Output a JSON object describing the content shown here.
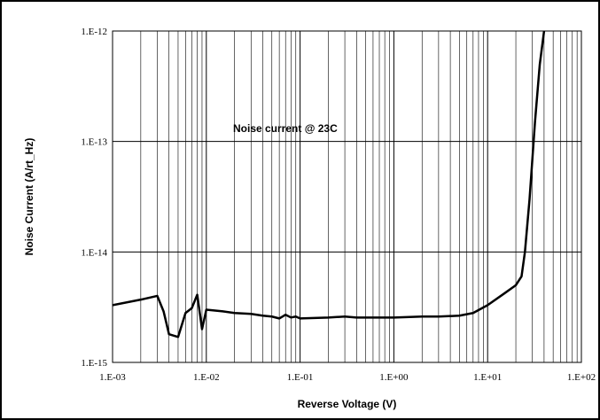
{
  "chart_data": {
    "type": "line",
    "title": "",
    "annotation": "Noise current @ 23C",
    "xlabel": "Reverse Voltage (V)",
    "ylabel": "Noise Current (A/rt_Hz)",
    "x_scale": "log",
    "y_scale": "log",
    "xlim": [
      0.001,
      100
    ],
    "ylim": [
      1e-15,
      1e-12
    ],
    "x_ticks": [
      "1.E-03",
      "1.E-02",
      "1.E-01",
      "1.E+00",
      "1.E+01",
      "1.E+02"
    ],
    "y_ticks": [
      "1.E-15",
      "1.E-14",
      "1.E-13",
      "1.E-12"
    ],
    "grid": true,
    "legend": "none",
    "series": [
      {
        "color": "#000000",
        "points": [
          [
            0.001,
            3.3e-15
          ],
          [
            0.002,
            3.7e-15
          ],
          [
            0.003,
            4e-15
          ],
          [
            0.0035,
            2.9e-15
          ],
          [
            0.004,
            1.8e-15
          ],
          [
            0.005,
            1.7e-15
          ],
          [
            0.006,
            2.8e-15
          ],
          [
            0.007,
            3.1e-15
          ],
          [
            0.008,
            4.1e-15
          ],
          [
            0.009,
            2e-15
          ],
          [
            0.01,
            3e-15
          ],
          [
            0.015,
            2.9e-15
          ],
          [
            0.02,
            2.8e-15
          ],
          [
            0.03,
            2.75e-15
          ],
          [
            0.04,
            2.65e-15
          ],
          [
            0.05,
            2.6e-15
          ],
          [
            0.06,
            2.5e-15
          ],
          [
            0.07,
            2.7e-15
          ],
          [
            0.08,
            2.55e-15
          ],
          [
            0.09,
            2.6e-15
          ],
          [
            0.1,
            2.5e-15
          ],
          [
            0.2,
            2.55e-15
          ],
          [
            0.3,
            2.6e-15
          ],
          [
            0.4,
            2.55e-15
          ],
          [
            0.5,
            2.55e-15
          ],
          [
            0.8,
            2.55e-15
          ],
          [
            1,
            2.55e-15
          ],
          [
            2,
            2.6e-15
          ],
          [
            3,
            2.6e-15
          ],
          [
            5,
            2.65e-15
          ],
          [
            7,
            2.8e-15
          ],
          [
            10,
            3.3e-15
          ],
          [
            15,
            4.2e-15
          ],
          [
            20,
            5e-15
          ],
          [
            23,
            6e-15
          ],
          [
            25,
            1e-14
          ],
          [
            28,
            3e-14
          ],
          [
            32,
            1.5e-13
          ],
          [
            36,
            5e-13
          ],
          [
            40,
            1e-12
          ]
        ]
      }
    ]
  }
}
